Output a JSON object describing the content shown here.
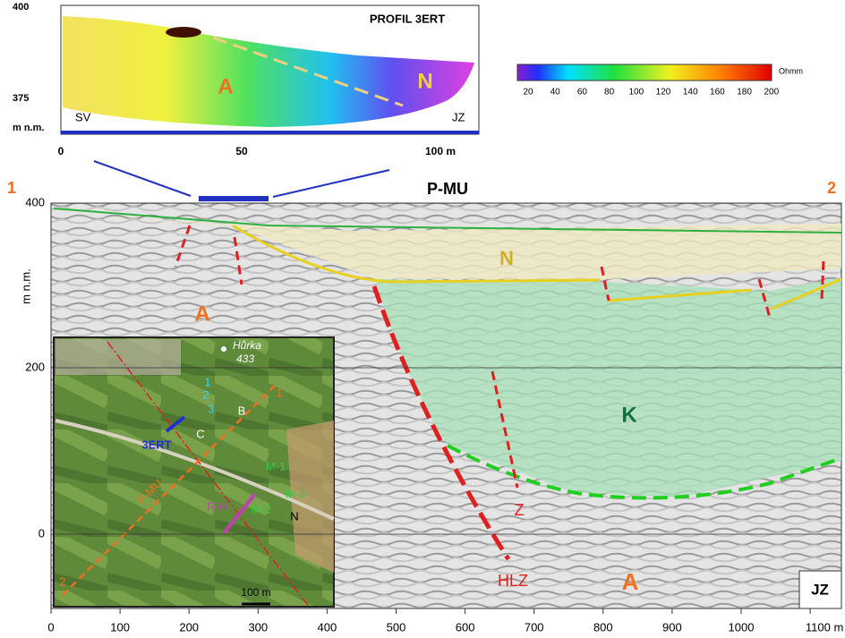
{
  "ert": {
    "title": "PROFIL 3ERT",
    "y_labels": [
      "400",
      "375",
      "m n.m."
    ],
    "x_labels": [
      "0",
      "50",
      "100 m"
    ],
    "left": "SV",
    "right": "JZ",
    "zones": [
      "A",
      "N"
    ]
  },
  "colorbar": {
    "ticks": [
      "20",
      "40",
      "60",
      "80",
      "100",
      "120",
      "140",
      "160",
      "180",
      "200"
    ],
    "unit": "Ohmm"
  },
  "profile": {
    "title": "P-MU",
    "start": "1",
    "end": "2",
    "y_label": "m n.m.",
    "y_ticks": [
      "400",
      "200",
      "0"
    ],
    "x_ticks": [
      "0",
      "100",
      "200",
      "300",
      "400",
      "500",
      "600",
      "700",
      "800",
      "900",
      "1000",
      "1100 m"
    ],
    "labels": [
      "N",
      "A",
      "K",
      "Z",
      "HLZ",
      "A"
    ],
    "corner": "JZ"
  },
  "map": {
    "hill": "Hůrka",
    "elevation": "433",
    "labels": [
      "1",
      "2",
      "3",
      "C",
      "B",
      "3ERT",
      "P-MU",
      "R-H",
      "M-1",
      "M-2",
      "M-3",
      "N",
      "1",
      "2"
    ],
    "scale": "100 m"
  }
}
